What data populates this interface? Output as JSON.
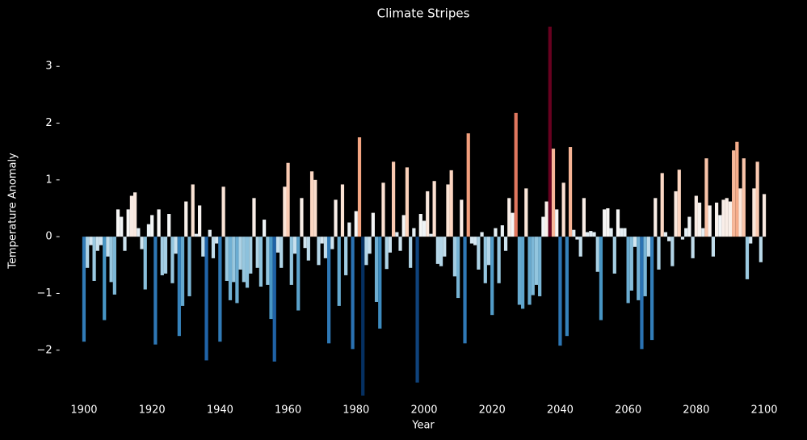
{
  "chart_data": {
    "type": "bar",
    "title": "Climate Stripes",
    "xlabel": "Year",
    "ylabel": "Temperature Anomaly",
    "x": [
      1900,
      1901,
      1902,
      1903,
      1904,
      1905,
      1906,
      1907,
      1908,
      1909,
      1910,
      1911,
      1912,
      1913,
      1914,
      1915,
      1916,
      1917,
      1918,
      1919,
      1920,
      1921,
      1922,
      1923,
      1924,
      1925,
      1926,
      1927,
      1928,
      1929,
      1930,
      1931,
      1932,
      1933,
      1934,
      1935,
      1936,
      1937,
      1938,
      1939,
      1940,
      1941,
      1942,
      1943,
      1944,
      1945,
      1946,
      1947,
      1948,
      1949,
      1950,
      1951,
      1952,
      1953,
      1954,
      1955,
      1956,
      1957,
      1958,
      1959,
      1960,
      1961,
      1962,
      1963,
      1964,
      1965,
      1966,
      1967,
      1968,
      1969,
      1970,
      1971,
      1972,
      1973,
      1974,
      1975,
      1976,
      1977,
      1978,
      1979,
      1980,
      1981,
      1982,
      1983,
      1984,
      1985,
      1986,
      1987,
      1988,
      1989,
      1990,
      1991,
      1992,
      1993,
      1994,
      1995,
      1996,
      1997,
      1998,
      1999,
      2000,
      2001,
      2002,
      2003,
      2004,
      2005,
      2006,
      2007,
      2008,
      2009,
      2010,
      2011,
      2012,
      2013,
      2014,
      2015,
      2016,
      2017,
      2018,
      2019,
      2020,
      2021,
      2022,
      2023,
      2024,
      2025,
      2026,
      2027,
      2028,
      2029,
      2030,
      2031,
      2032,
      2033,
      2034,
      2035,
      2036,
      2037,
      2038,
      2039,
      2040,
      2041,
      2042,
      2043,
      2044,
      2045,
      2046,
      2047,
      2048,
      2049,
      2050,
      2051,
      2052,
      2053,
      2054,
      2055,
      2056,
      2057,
      2058,
      2059,
      2060,
      2061,
      2062,
      2063,
      2064,
      2065,
      2066,
      2067,
      2068,
      2069,
      2070,
      2071,
      2072,
      2073,
      2074,
      2075,
      2076,
      2077,
      2078,
      2079,
      2080,
      2081,
      2082,
      2083,
      2084,
      2085,
      2086,
      2087,
      2088,
      2089,
      2090,
      2091,
      2092,
      2093,
      2094,
      2095,
      2096,
      2097,
      2098,
      2099,
      2100
    ],
    "values": [
      -1.85,
      -0.55,
      -0.15,
      -0.78,
      -0.25,
      -0.15,
      -1.47,
      -0.35,
      -0.8,
      -1.02,
      0.48,
      0.35,
      -0.25,
      0.48,
      0.72,
      0.78,
      0.15,
      -0.22,
      -0.93,
      0.22,
      0.38,
      -1.9,
      0.48,
      -0.68,
      -0.65,
      0.4,
      -0.82,
      -0.3,
      -1.75,
      -1.22,
      0.62,
      -1.05,
      0.92,
      0.05,
      0.55,
      -0.35,
      -2.18,
      0.12,
      -0.38,
      -0.12,
      -1.85,
      0.88,
      -0.78,
      -1.12,
      -0.8,
      -1.17,
      -0.58,
      -0.8,
      -0.9,
      -0.65,
      0.68,
      -0.55,
      -0.88,
      0.3,
      -0.85,
      -1.45,
      -2.2,
      -0.28,
      -0.55,
      0.88,
      1.3,
      -0.85,
      -0.3,
      -1.3,
      0.68,
      -0.2,
      -0.42,
      1.15,
      1.0,
      -0.5,
      -0.12,
      -0.38,
      -1.88,
      -0.22,
      0.65,
      -1.22,
      0.92,
      -0.68,
      0.25,
      -1.98,
      0.45,
      1.75,
      -2.8,
      -0.5,
      -0.3,
      0.42,
      -1.15,
      -1.62,
      0.95,
      -0.57,
      -0.28,
      1.32,
      0.08,
      -0.25,
      0.38,
      1.22,
      -0.55,
      0.15,
      -2.57,
      0.4,
      0.28,
      0.8,
      0.05,
      0.98,
      -0.48,
      -0.52,
      -0.35,
      0.92,
      1.17,
      -0.7,
      -1.08,
      0.65,
      -1.88,
      1.82,
      -0.12,
      -0.15,
      -0.58,
      0.08,
      -0.82,
      -0.5,
      -1.38,
      0.15,
      -0.82,
      0.2,
      -0.25,
      0.68,
      0.42,
      2.18,
      -1.2,
      -1.27,
      0.85,
      -1.2,
      -1.03,
      -0.85,
      -1.05,
      0.35,
      0.62,
      3.7,
      1.55,
      0.48,
      -1.92,
      0.95,
      -1.75,
      1.58,
      0.12,
      -0.05,
      -0.35,
      0.68,
      0.08,
      0.1,
      0.08,
      -0.62,
      -1.47,
      0.48,
      0.5,
      0.15,
      -0.65,
      0.48,
      0.15,
      0.15,
      -1.17,
      -0.95,
      -0.18,
      -1.12,
      -1.98,
      -1.05,
      -0.35,
      -1.82,
      0.68,
      -0.58,
      1.12,
      0.08,
      -0.08,
      -0.52,
      0.8,
      1.18,
      -0.05,
      0.15,
      0.35,
      -0.38,
      0.72,
      0.6,
      0.15,
      1.38,
      0.55,
      -0.35,
      0.6,
      0.38,
      0.65,
      0.68,
      0.62,
      1.52,
      1.67,
      0.85,
      1.38,
      -0.75,
      -0.12,
      0.85,
      1.32,
      -0.45,
      0.75
    ],
    "colormap": [
      "#053061",
      "#2166ac",
      "#4393c3",
      "#92c5de",
      "#d1e5f0",
      "#f7f7f7",
      "#fddbc7",
      "#f4a582",
      "#d6604d",
      "#b2182b",
      "#67001f"
    ],
    "xlim": [
      1894,
      2106
    ],
    "ylim": [
      -2.8,
      3.7
    ],
    "xticks": [
      1900,
      1920,
      1940,
      1960,
      1980,
      2000,
      2020,
      2040,
      2060,
      2080,
      2100
    ],
    "yticks": [
      {
        "value": -2,
        "label": "−2"
      },
      {
        "value": -1,
        "label": "−1"
      },
      0,
      1,
      2,
      3
    ],
    "background": "#000000",
    "grid": false
  }
}
